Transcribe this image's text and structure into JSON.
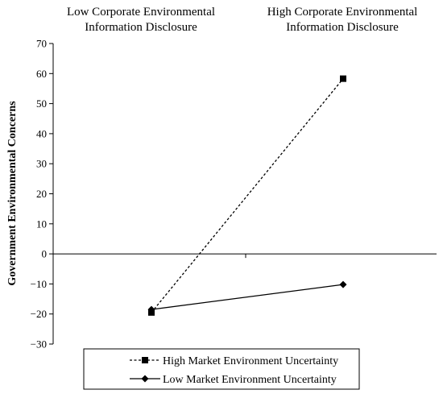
{
  "chart_data": {
    "type": "line",
    "categories": [
      "Low Corporate Environmental Information Disclosure",
      "High Corporate Environmental Information Disclosure"
    ],
    "category_lines": [
      [
        "Low Corporate Environmental",
        "Information Disclosure"
      ],
      [
        "High Corporate Environmental",
        "Information Disclosure"
      ]
    ],
    "ylabel": "Government  Environmental  Concerns",
    "ylim": [
      -30,
      70
    ],
    "yticks": [
      70,
      60,
      50,
      40,
      30,
      20,
      10,
      0,
      -10,
      -20,
      -30
    ],
    "ytick_labels": [
      "70",
      "60",
      "50",
      "40",
      "30",
      "20",
      "10",
      "0",
      "−10",
      "−20",
      "−30"
    ],
    "grid": false,
    "legend_position": "bottom",
    "series": [
      {
        "name": "High Market Environment Uncertainty",
        "values": [
          -19.5,
          58.3
        ],
        "line_style": "dashed",
        "marker": "square"
      },
      {
        "name": "Low Market Environment Uncertainty",
        "values": [
          -18.5,
          -10.2
        ],
        "line_style": "solid",
        "marker": "diamond"
      }
    ]
  }
}
